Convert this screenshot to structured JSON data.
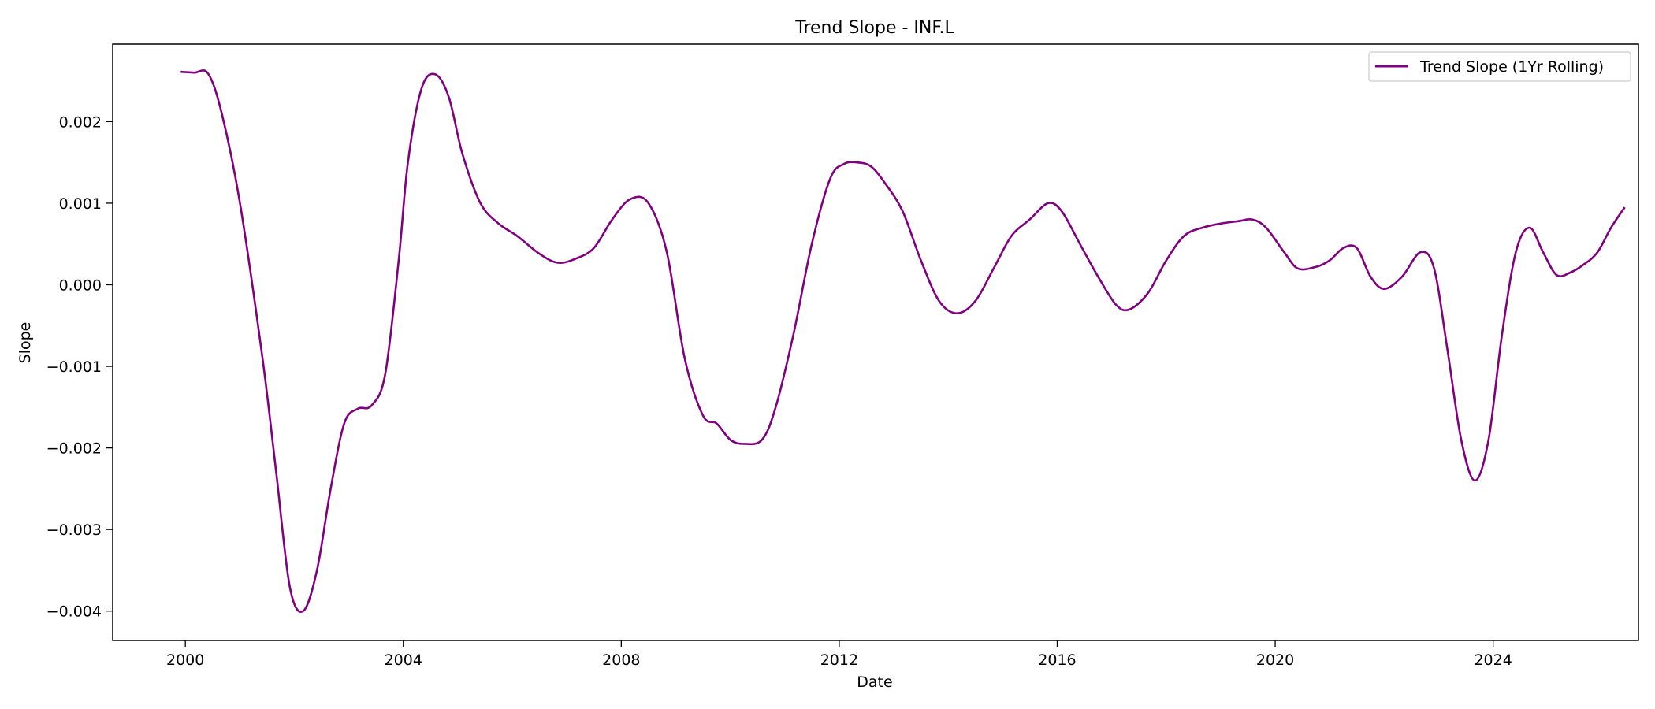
{
  "chart_data": {
    "type": "line",
    "title": "Trend Slope - INF.L",
    "xlabel": "Date",
    "ylabel": "Slope",
    "x_ticks": [
      "2000",
      "2004",
      "2008",
      "2012",
      "2016",
      "2020",
      "2024"
    ],
    "y_ticks": [
      "−0.004",
      "−0.003",
      "−0.002",
      "−0.001",
      "0.000",
      "0.001",
      "0.002"
    ],
    "xlim": [
      "1998-09-01",
      "2026-09-01"
    ],
    "ylim": [
      -0.00436,
      0.00295
    ],
    "grid": false,
    "legend": "upper-right",
    "series": [
      {
        "name": "Trend Slope (1Yr Rolling)",
        "color": "#800080",
        "points": [
          [
            "1999-12-01",
            0.00261
          ],
          [
            "2000-03-01",
            0.0026
          ],
          [
            "2000-06-01",
            0.00259
          ],
          [
            "2000-09-01",
            0.0021
          ],
          [
            "2001-01-01",
            0.001
          ],
          [
            "2001-06-01",
            -0.0009
          ],
          [
            "2001-09-01",
            -0.0023
          ],
          [
            "2001-12-01",
            -0.0037
          ],
          [
            "2002-03-01",
            -0.004
          ],
          [
            "2002-06-01",
            -0.0035
          ],
          [
            "2002-09-01",
            -0.0025
          ],
          [
            "2002-12-01",
            -0.0017
          ],
          [
            "2003-03-01",
            -0.00152
          ],
          [
            "2003-06-01",
            -0.00148
          ],
          [
            "2003-09-01",
            -0.0011
          ],
          [
            "2003-12-01",
            0.0003
          ],
          [
            "2004-02-01",
            0.0015
          ],
          [
            "2004-05-01",
            0.0024
          ],
          [
            "2004-08-01",
            0.00258
          ],
          [
            "2004-11-01",
            0.0023
          ],
          [
            "2005-02-01",
            0.0016
          ],
          [
            "2005-06-01",
            0.001
          ],
          [
            "2005-10-01",
            0.00075
          ],
          [
            "2006-02-01",
            0.0006
          ],
          [
            "2006-07-01",
            0.00038
          ],
          [
            "2006-11-01",
            0.00027
          ],
          [
            "2007-03-01",
            0.00032
          ],
          [
            "2007-07-01",
            0.00045
          ],
          [
            "2007-11-01",
            0.0008
          ],
          [
            "2008-03-01",
            0.00105
          ],
          [
            "2008-07-01",
            0.001
          ],
          [
            "2008-11-01",
            0.0004
          ],
          [
            "2009-03-01",
            -0.0009
          ],
          [
            "2009-07-01",
            -0.0016
          ],
          [
            "2009-10-01",
            -0.0017
          ],
          [
            "2010-01-01",
            -0.0019
          ],
          [
            "2010-04-01",
            -0.00195
          ],
          [
            "2010-08-01",
            -0.0019
          ],
          [
            "2010-11-01",
            -0.0015
          ],
          [
            "2011-03-01",
            -0.0006
          ],
          [
            "2011-07-01",
            0.0005
          ],
          [
            "2011-11-01",
            0.0013
          ],
          [
            "2012-02-01",
            0.00148
          ],
          [
            "2012-05-01",
            0.0015
          ],
          [
            "2012-08-01",
            0.00145
          ],
          [
            "2012-11-01",
            0.00125
          ],
          [
            "2013-03-01",
            0.0009
          ],
          [
            "2013-07-01",
            0.0003
          ],
          [
            "2013-11-01",
            -0.0002
          ],
          [
            "2014-03-01",
            -0.00035
          ],
          [
            "2014-07-01",
            -0.0002
          ],
          [
            "2014-11-01",
            0.0002
          ],
          [
            "2015-03-01",
            0.0006
          ],
          [
            "2015-07-01",
            0.0008
          ],
          [
            "2015-11-01",
            0.001
          ],
          [
            "2016-02-01",
            0.0009
          ],
          [
            "2016-06-01",
            0.0005
          ],
          [
            "2016-10-01",
            0.0001
          ],
          [
            "2017-02-01",
            -0.00025
          ],
          [
            "2017-05-01",
            -0.0003
          ],
          [
            "2017-09-01",
            -0.0001
          ],
          [
            "2018-01-01",
            0.0003
          ],
          [
            "2018-05-01",
            0.0006
          ],
          [
            "2018-09-01",
            0.0007
          ],
          [
            "2019-01-01",
            0.00075
          ],
          [
            "2019-05-01",
            0.00078
          ],
          [
            "2019-08-01",
            0.0008
          ],
          [
            "2019-11-01",
            0.0007
          ],
          [
            "2020-03-01",
            0.0004
          ],
          [
            "2020-06-01",
            0.0002
          ],
          [
            "2020-10-01",
            0.00022
          ],
          [
            "2021-01-01",
            0.0003
          ],
          [
            "2021-04-01",
            0.00045
          ],
          [
            "2021-07-01",
            0.00045
          ],
          [
            "2021-10-01",
            0.0001
          ],
          [
            "2022-01-01",
            -5e-05
          ],
          [
            "2022-05-01",
            0.0001
          ],
          [
            "2022-09-01",
            0.0004
          ],
          [
            "2022-12-01",
            0.0002
          ],
          [
            "2023-03-01",
            -0.0008
          ],
          [
            "2023-06-01",
            -0.0019
          ],
          [
            "2023-09-01",
            -0.0024
          ],
          [
            "2023-12-01",
            -0.0019
          ],
          [
            "2024-03-01",
            -0.0006
          ],
          [
            "2024-06-01",
            0.0004
          ],
          [
            "2024-09-01",
            0.0007
          ],
          [
            "2024-12-01",
            0.0004
          ],
          [
            "2025-03-01",
            0.00012
          ],
          [
            "2025-06-01",
            0.00015
          ],
          [
            "2025-09-01",
            0.00025
          ],
          [
            "2025-12-01",
            0.0004
          ],
          [
            "2026-03-01",
            0.0007
          ],
          [
            "2026-06-01",
            0.00095
          ]
        ]
      }
    ]
  }
}
